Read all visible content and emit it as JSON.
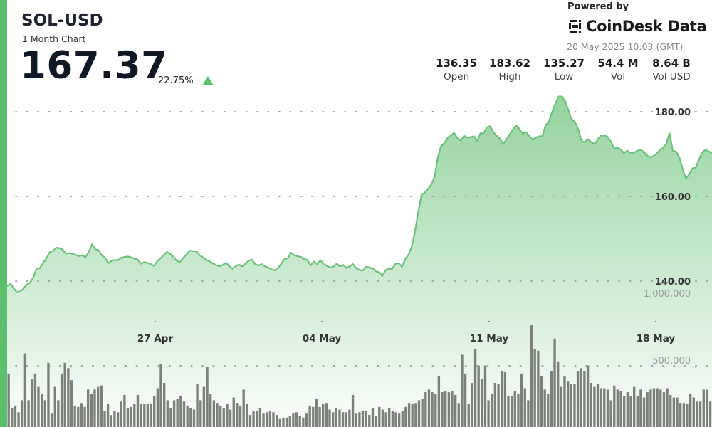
{
  "header": {
    "symbol": "SOL-USD",
    "period": "1 Month Chart",
    "price": "167.37",
    "change_pct": "22.75%",
    "direction": "up"
  },
  "branding": {
    "powered_by": "Powered by",
    "name": "CoinDesk Data",
    "timestamp": "20 May 2025 10:03 (GMT)"
  },
  "stats": [
    {
      "value": "136.35",
      "label": "Open"
    },
    {
      "value": "183.62",
      "label": "High"
    },
    {
      "value": "135.27",
      "label": "Low"
    },
    {
      "value": "54.4 M",
      "label": "Vol"
    },
    {
      "value": "8.64 B",
      "label": "Vol USD"
    }
  ],
  "colors": {
    "accent": "#5cbf6e",
    "line": "#6cc27a",
    "volume_bar": "#7d8079",
    "text_dark": "#101725"
  },
  "chart_data": [
    {
      "type": "area",
      "x_tick_labels": [
        "27 Apr",
        "04 May",
        "11 May",
        "18 May"
      ],
      "y_tick_labels": [
        "140.00",
        "160.00",
        "180.00"
      ],
      "y_ticks": [
        140,
        160,
        180
      ],
      "ylim": [
        136.9,
        184.7
      ],
      "grid": true,
      "grid_style": "dotted",
      "values": [
        138.8,
        139.4,
        138.3,
        137.4,
        137.6,
        138.2,
        139.2,
        139.6,
        140.9,
        142.9,
        143.0,
        144.3,
        145.3,
        146.8,
        147.1,
        147.9,
        147.8,
        147.4,
        146.5,
        146.6,
        146.5,
        146.2,
        145.9,
        146.1,
        145.6,
        146.9,
        148.7,
        147.5,
        147.3,
        146.1,
        145.5,
        144.2,
        144.8,
        145.0,
        144.9,
        145.5,
        145.7,
        145.8,
        145.6,
        145.3,
        145.1,
        144.1,
        144.5,
        144.3,
        144.0,
        143.6,
        144.7,
        145.4,
        146.1,
        146.9,
        146.4,
        145.7,
        144.8,
        144.5,
        145.5,
        146.3,
        147.2,
        147.1,
        147.0,
        146.1,
        145.6,
        145.0,
        144.7,
        144.2,
        143.8,
        143.5,
        143.8,
        144.3,
        143.6,
        142.9,
        143.5,
        143.9,
        143.5,
        144.1,
        144.8,
        145.1,
        144.0,
        143.7,
        144.0,
        143.5,
        143.2,
        142.8,
        142.5,
        143.1,
        144.1,
        145.2,
        145.4,
        146.7,
        146.1,
        145.9,
        145.7,
        145.2,
        145.0,
        143.7,
        144.6,
        144.0,
        144.9,
        144.0,
        143.6,
        143.2,
        143.4,
        144.1,
        143.5,
        143.8,
        143.1,
        143.5,
        144.0,
        143.0,
        142.6,
        142.5,
        143.4,
        143.2,
        143.0,
        142.3,
        142.1,
        141.2,
        142.6,
        142.9,
        142.9,
        144.1,
        144.2,
        143.4,
        145.2,
        146.3,
        148.1,
        151.7,
        156.4,
        160.4,
        160.9,
        161.8,
        162.8,
        164.6,
        169.3,
        171.9,
        172.6,
        173.9,
        174.4,
        175.0,
        173.7,
        173.2,
        174.3,
        173.9,
        174.0,
        174.2,
        173.0,
        174.9,
        174.9,
        176.3,
        176.6,
        175.2,
        174.3,
        173.7,
        172.3,
        173.5,
        174.6,
        175.8,
        176.8,
        175.9,
        174.8,
        175.2,
        174.3,
        173.4,
        173.9,
        174.2,
        174.2,
        176.8,
        177.6,
        179.9,
        181.9,
        183.6,
        183.6,
        182.5,
        180.4,
        178.2,
        177.6,
        175.9,
        173.1,
        172.8,
        173.5,
        172.8,
        172.4,
        173.5,
        174.4,
        174.4,
        174.1,
        173.0,
        171.3,
        171.5,
        171.1,
        170.2,
        170.8,
        170.3,
        170.3,
        170.7,
        171.1,
        170.6,
        169.8,
        169.2,
        169.5,
        170.1,
        170.9,
        171.5,
        172.4,
        174.9,
        170.7,
        170.6,
        169.2,
        166.5,
        164.2,
        165.2,
        166.6,
        166.8,
        168.7,
        170.4,
        171.0,
        170.6,
        170.2
      ]
    },
    {
      "type": "bar",
      "name": "Volume",
      "y_tick_labels": [
        "500,000",
        "1,000,000"
      ],
      "y_ticks": [
        500000,
        1000000
      ],
      "ylim": [
        0,
        1060000
      ],
      "values": [
        400000,
        140000,
        160000,
        110000,
        200000,
        550000,
        200000,
        360000,
        400000,
        300000,
        250000,
        200000,
        480000,
        100000,
        300000,
        200000,
        400000,
        480000,
        440000,
        350000,
        160000,
        150000,
        180000,
        150000,
        280000,
        250000,
        280000,
        300000,
        310000,
        120000,
        170000,
        90000,
        120000,
        110000,
        190000,
        240000,
        140000,
        150000,
        170000,
        240000,
        170000,
        170000,
        170000,
        170000,
        230000,
        290000,
        470000,
        330000,
        200000,
        140000,
        200000,
        210000,
        230000,
        190000,
        160000,
        140000,
        130000,
        320000,
        200000,
        300000,
        450000,
        250000,
        200000,
        180000,
        160000,
        140000,
        170000,
        130000,
        220000,
        180000,
        160000,
        280000,
        170000,
        90000,
        120000,
        120000,
        140000,
        100000,
        110000,
        120000,
        110000,
        90000,
        60000,
        70000,
        70000,
        80000,
        100000,
        110000,
        80000,
        70000,
        100000,
        160000,
        150000,
        210000,
        150000,
        170000,
        180000,
        130000,
        110000,
        140000,
        130000,
        110000,
        110000,
        130000,
        240000,
        100000,
        110000,
        120000,
        120000,
        90000,
        140000,
        80000,
        150000,
        130000,
        110000,
        140000,
        120000,
        110000,
        100000,
        120000,
        150000,
        180000,
        170000,
        180000,
        200000,
        210000,
        260000,
        280000,
        260000,
        250000,
        380000,
        260000,
        270000,
        260000,
        270000,
        240000,
        180000,
        540000,
        400000,
        170000,
        330000,
        580000,
        460000,
        360000,
        460000,
        200000,
        250000,
        330000,
        320000,
        420000,
        410000,
        230000,
        230000,
        270000,
        250000,
        400000,
        290000,
        200000,
        760000,
        580000,
        570000,
        380000,
        280000,
        250000,
        420000,
        660000,
        490000,
        300000,
        380000,
        340000,
        320000,
        320000,
        420000,
        440000,
        420000,
        460000,
        330000,
        300000,
        320000,
        290000,
        290000,
        280000,
        200000,
        310000,
        280000,
        270000,
        230000,
        260000,
        230000,
        300000,
        230000,
        280000,
        220000,
        260000,
        280000,
        290000,
        290000,
        280000,
        260000,
        290000,
        240000,
        220000,
        220000,
        180000,
        180000,
        170000,
        250000,
        220000,
        190000,
        190000,
        280000,
        280000,
        190000
      ]
    }
  ]
}
